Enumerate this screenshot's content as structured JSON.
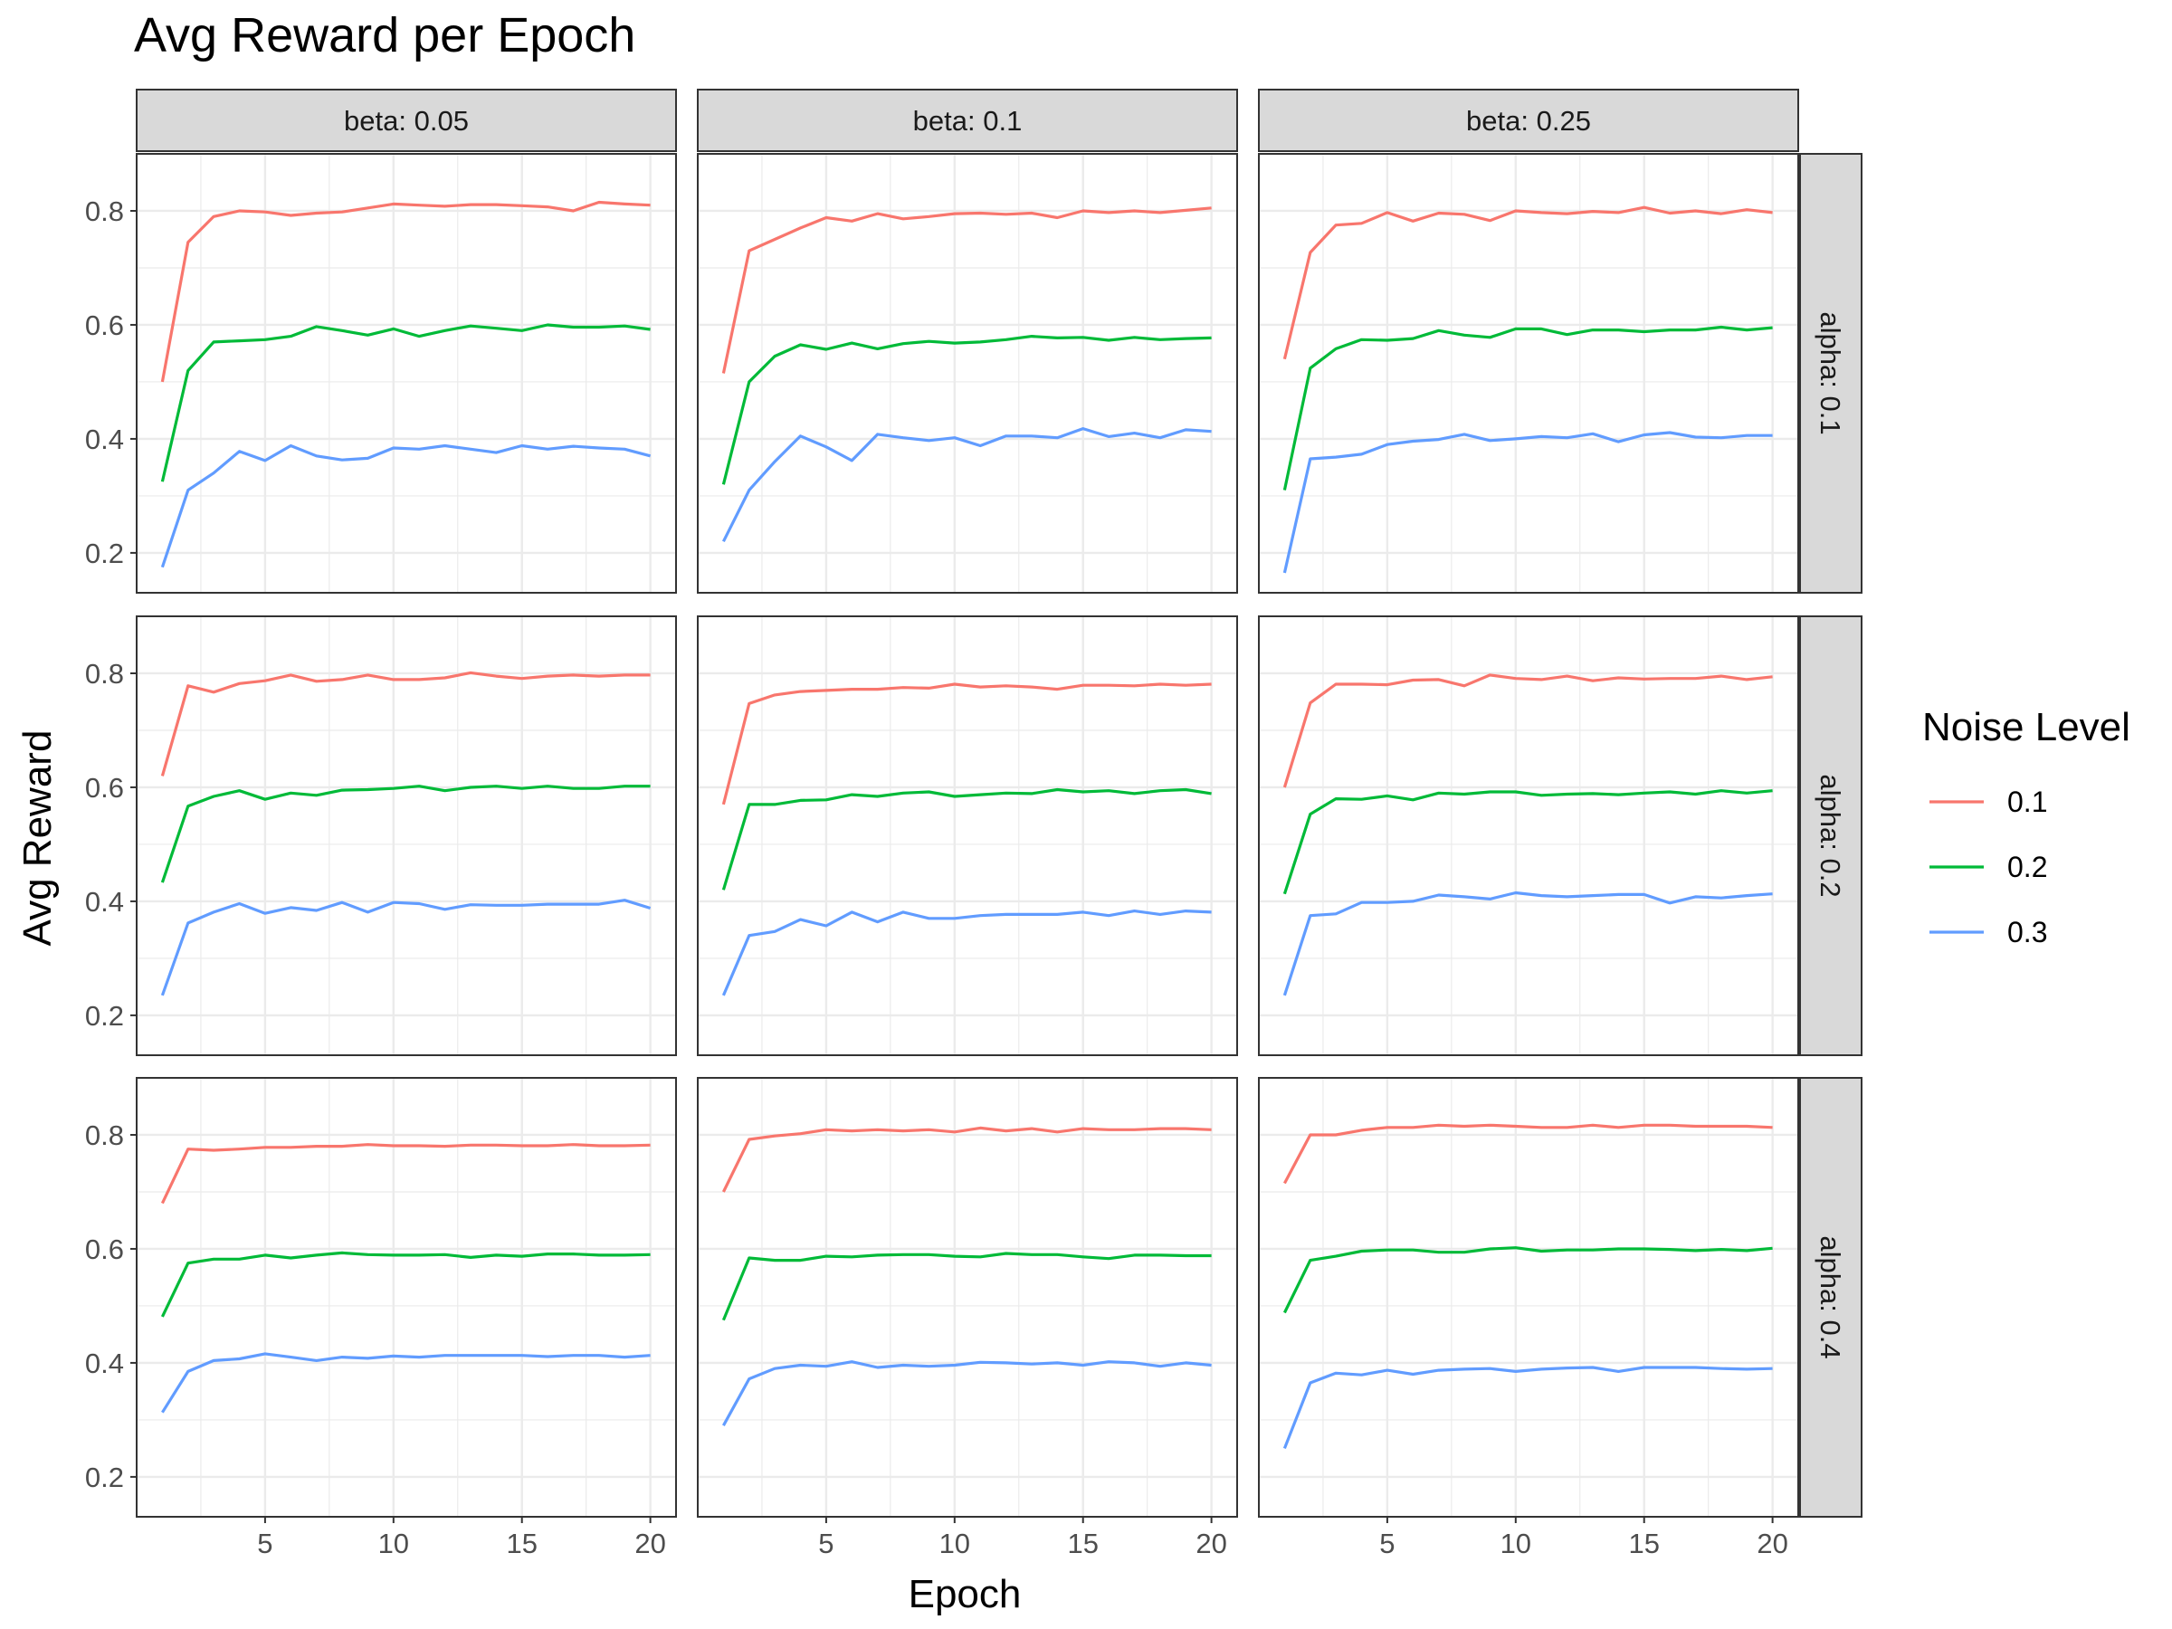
{
  "chart_data": {
    "type": "line",
    "title": "Avg Reward per Epoch",
    "xlabel": "Epoch",
    "ylabel": "Avg Reward",
    "xlim": [
      0,
      21
    ],
    "ylim": [
      0.13,
      0.9
    ],
    "x_ticks": [
      5,
      10,
      15,
      20
    ],
    "y_ticks": [
      0.2,
      0.4,
      0.6,
      0.8
    ],
    "y_tick_labels": [
      "0.2",
      "0.4",
      "0.6",
      "0.8"
    ],
    "grid": true,
    "legend": {
      "title": "Noise Level",
      "position": "right"
    },
    "colors": {
      "0.1": "#F8766D",
      "0.2": "#00BA38",
      "0.3": "#619CFF"
    },
    "facet_cols": [
      "beta: 0.05",
      "beta: 0.1",
      "beta: 0.25"
    ],
    "facet_rows": [
      "alpha: 0.1",
      "alpha: 0.2",
      "alpha: 0.4"
    ],
    "x": [
      1,
      2,
      3,
      4,
      5,
      6,
      7,
      8,
      9,
      10,
      11,
      12,
      13,
      14,
      15,
      16,
      17,
      18,
      19,
      20
    ],
    "panels": [
      {
        "row": "alpha: 0.1",
        "col": "beta: 0.05",
        "series": [
          {
            "name": "0.1",
            "values": [
              0.5,
              0.745,
              0.79,
              0.8,
              0.798,
              0.792,
              0.796,
              0.798,
              0.805,
              0.812,
              0.81,
              0.808,
              0.811,
              0.811,
              0.809,
              0.807,
              0.8,
              0.815,
              0.812,
              0.81
            ]
          },
          {
            "name": "0.2",
            "values": [
              0.325,
              0.52,
              0.57,
              0.572,
              0.574,
              0.58,
              0.597,
              0.59,
              0.582,
              0.593,
              0.58,
              0.59,
              0.598,
              0.594,
              0.59,
              0.6,
              0.596,
              0.596,
              0.598,
              0.592
            ]
          },
          {
            "name": "0.3",
            "values": [
              0.175,
              0.31,
              0.34,
              0.378,
              0.362,
              0.388,
              0.37,
              0.363,
              0.366,
              0.384,
              0.382,
              0.388,
              0.382,
              0.376,
              0.388,
              0.382,
              0.387,
              0.384,
              0.382,
              0.37
            ]
          }
        ]
      },
      {
        "row": "alpha: 0.1",
        "col": "beta: 0.1",
        "series": [
          {
            "name": "0.1",
            "values": [
              0.515,
              0.73,
              0.75,
              0.77,
              0.788,
              0.782,
              0.795,
              0.786,
              0.79,
              0.795,
              0.796,
              0.794,
              0.796,
              0.788,
              0.8,
              0.797,
              0.8,
              0.797,
              0.801,
              0.805
            ]
          },
          {
            "name": "0.2",
            "values": [
              0.32,
              0.5,
              0.545,
              0.565,
              0.557,
              0.568,
              0.558,
              0.567,
              0.571,
              0.568,
              0.57,
              0.574,
              0.58,
              0.577,
              0.578,
              0.573,
              0.578,
              0.574,
              0.576,
              0.577
            ]
          },
          {
            "name": "0.3",
            "values": [
              0.22,
              0.31,
              0.36,
              0.405,
              0.386,
              0.362,
              0.408,
              0.402,
              0.397,
              0.402,
              0.388,
              0.405,
              0.405,
              0.402,
              0.418,
              0.404,
              0.41,
              0.402,
              0.416,
              0.413
            ]
          }
        ]
      },
      {
        "row": "alpha: 0.1",
        "col": "beta: 0.25",
        "series": [
          {
            "name": "0.1",
            "values": [
              0.54,
              0.727,
              0.775,
              0.778,
              0.797,
              0.782,
              0.796,
              0.794,
              0.783,
              0.8,
              0.797,
              0.795,
              0.799,
              0.797,
              0.806,
              0.796,
              0.8,
              0.795,
              0.802,
              0.797
            ]
          },
          {
            "name": "0.2",
            "values": [
              0.31,
              0.524,
              0.558,
              0.574,
              0.573,
              0.576,
              0.59,
              0.582,
              0.578,
              0.593,
              0.593,
              0.583,
              0.591,
              0.591,
              0.588,
              0.591,
              0.591,
              0.596,
              0.591,
              0.595
            ]
          },
          {
            "name": "0.3",
            "values": [
              0.165,
              0.365,
              0.368,
              0.373,
              0.39,
              0.396,
              0.399,
              0.408,
              0.397,
              0.4,
              0.404,
              0.402,
              0.409,
              0.395,
              0.407,
              0.411,
              0.403,
              0.402,
              0.406,
              0.406
            ]
          }
        ]
      },
      {
        "row": "alpha: 0.2",
        "col": "beta: 0.05",
        "series": [
          {
            "name": "0.1",
            "values": [
              0.62,
              0.778,
              0.767,
              0.782,
              0.787,
              0.797,
              0.786,
              0.789,
              0.797,
              0.789,
              0.789,
              0.792,
              0.801,
              0.795,
              0.791,
              0.795,
              0.797,
              0.795,
              0.797,
              0.797
            ]
          },
          {
            "name": "0.2",
            "values": [
              0.433,
              0.567,
              0.584,
              0.594,
              0.579,
              0.59,
              0.586,
              0.595,
              0.596,
              0.598,
              0.602,
              0.594,
              0.6,
              0.602,
              0.598,
              0.602,
              0.598,
              0.598,
              0.602,
              0.602
            ]
          },
          {
            "name": "0.3",
            "values": [
              0.235,
              0.362,
              0.381,
              0.396,
              0.379,
              0.389,
              0.384,
              0.398,
              0.381,
              0.398,
              0.396,
              0.386,
              0.394,
              0.393,
              0.393,
              0.395,
              0.395,
              0.395,
              0.402,
              0.388
            ]
          }
        ]
      },
      {
        "row": "alpha: 0.2",
        "col": "beta: 0.1",
        "series": [
          {
            "name": "0.1",
            "values": [
              0.57,
              0.747,
              0.762,
              0.768,
              0.77,
              0.772,
              0.772,
              0.775,
              0.774,
              0.781,
              0.776,
              0.778,
              0.776,
              0.772,
              0.779,
              0.779,
              0.778,
              0.781,
              0.779,
              0.781
            ]
          },
          {
            "name": "0.2",
            "values": [
              0.42,
              0.57,
              0.57,
              0.577,
              0.578,
              0.587,
              0.584,
              0.59,
              0.592,
              0.584,
              0.587,
              0.59,
              0.589,
              0.596,
              0.592,
              0.594,
              0.589,
              0.594,
              0.596,
              0.589
            ]
          },
          {
            "name": "0.3",
            "values": [
              0.235,
              0.34,
              0.347,
              0.368,
              0.357,
              0.381,
              0.364,
              0.381,
              0.37,
              0.37,
              0.375,
              0.377,
              0.377,
              0.377,
              0.381,
              0.375,
              0.383,
              0.377,
              0.383,
              0.381
            ]
          }
        ]
      },
      {
        "row": "alpha: 0.2",
        "col": "beta: 0.25",
        "series": [
          {
            "name": "0.1",
            "values": [
              0.6,
              0.748,
              0.781,
              0.781,
              0.78,
              0.788,
              0.789,
              0.778,
              0.797,
              0.791,
              0.789,
              0.795,
              0.787,
              0.792,
              0.79,
              0.791,
              0.791,
              0.795,
              0.789,
              0.794
            ]
          },
          {
            "name": "0.2",
            "values": [
              0.413,
              0.553,
              0.58,
              0.579,
              0.585,
              0.578,
              0.59,
              0.588,
              0.592,
              0.592,
              0.586,
              0.588,
              0.589,
              0.587,
              0.59,
              0.592,
              0.588,
              0.594,
              0.59,
              0.594
            ]
          },
          {
            "name": "0.3",
            "values": [
              0.235,
              0.375,
              0.378,
              0.398,
              0.398,
              0.4,
              0.411,
              0.408,
              0.404,
              0.415,
              0.41,
              0.408,
              0.41,
              0.412,
              0.412,
              0.397,
              0.408,
              0.406,
              0.41,
              0.413
            ]
          }
        ]
      },
      {
        "row": "alpha: 0.4",
        "col": "beta: 0.05",
        "series": [
          {
            "name": "0.1",
            "values": [
              0.68,
              0.775,
              0.773,
              0.775,
              0.778,
              0.778,
              0.78,
              0.78,
              0.783,
              0.781,
              0.781,
              0.78,
              0.782,
              0.782,
              0.781,
              0.781,
              0.783,
              0.781,
              0.781,
              0.782
            ]
          },
          {
            "name": "0.2",
            "values": [
              0.481,
              0.575,
              0.582,
              0.582,
              0.589,
              0.584,
              0.589,
              0.593,
              0.59,
              0.589,
              0.589,
              0.59,
              0.585,
              0.589,
              0.587,
              0.591,
              0.591,
              0.589,
              0.589,
              0.59
            ]
          },
          {
            "name": "0.3",
            "values": [
              0.313,
              0.385,
              0.404,
              0.407,
              0.416,
              0.41,
              0.404,
              0.41,
              0.408,
              0.412,
              0.41,
              0.413,
              0.413,
              0.413,
              0.413,
              0.411,
              0.413,
              0.413,
              0.41,
              0.413
            ]
          }
        ]
      },
      {
        "row": "alpha: 0.4",
        "col": "beta: 0.1",
        "series": [
          {
            "name": "0.1",
            "values": [
              0.7,
              0.792,
              0.798,
              0.802,
              0.809,
              0.807,
              0.809,
              0.807,
              0.809,
              0.805,
              0.812,
              0.807,
              0.811,
              0.805,
              0.811,
              0.809,
              0.809,
              0.811,
              0.811,
              0.809
            ]
          },
          {
            "name": "0.2",
            "values": [
              0.475,
              0.584,
              0.58,
              0.58,
              0.587,
              0.586,
              0.589,
              0.59,
              0.59,
              0.587,
              0.586,
              0.592,
              0.59,
              0.59,
              0.586,
              0.583,
              0.589,
              0.589,
              0.588,
              0.588
            ]
          },
          {
            "name": "0.3",
            "values": [
              0.29,
              0.372,
              0.39,
              0.396,
              0.394,
              0.402,
              0.392,
              0.396,
              0.394,
              0.396,
              0.401,
              0.4,
              0.398,
              0.4,
              0.396,
              0.402,
              0.4,
              0.394,
              0.4,
              0.396
            ]
          }
        ]
      },
      {
        "row": "alpha: 0.4",
        "col": "beta: 0.25",
        "series": [
          {
            "name": "0.1",
            "values": [
              0.715,
              0.8,
              0.8,
              0.808,
              0.813,
              0.813,
              0.817,
              0.815,
              0.817,
              0.815,
              0.813,
              0.813,
              0.817,
              0.813,
              0.817,
              0.817,
              0.815,
              0.815,
              0.815,
              0.813
            ]
          },
          {
            "name": "0.2",
            "values": [
              0.488,
              0.58,
              0.587,
              0.596,
              0.598,
              0.598,
              0.594,
              0.594,
              0.6,
              0.602,
              0.596,
              0.598,
              0.598,
              0.6,
              0.6,
              0.599,
              0.597,
              0.599,
              0.597,
              0.601
            ]
          },
          {
            "name": "0.3",
            "values": [
              0.25,
              0.365,
              0.382,
              0.379,
              0.387,
              0.38,
              0.387,
              0.389,
              0.39,
              0.385,
              0.389,
              0.391,
              0.392,
              0.385,
              0.392,
              0.392,
              0.392,
              0.39,
              0.389,
              0.39
            ]
          }
        ]
      }
    ]
  }
}
